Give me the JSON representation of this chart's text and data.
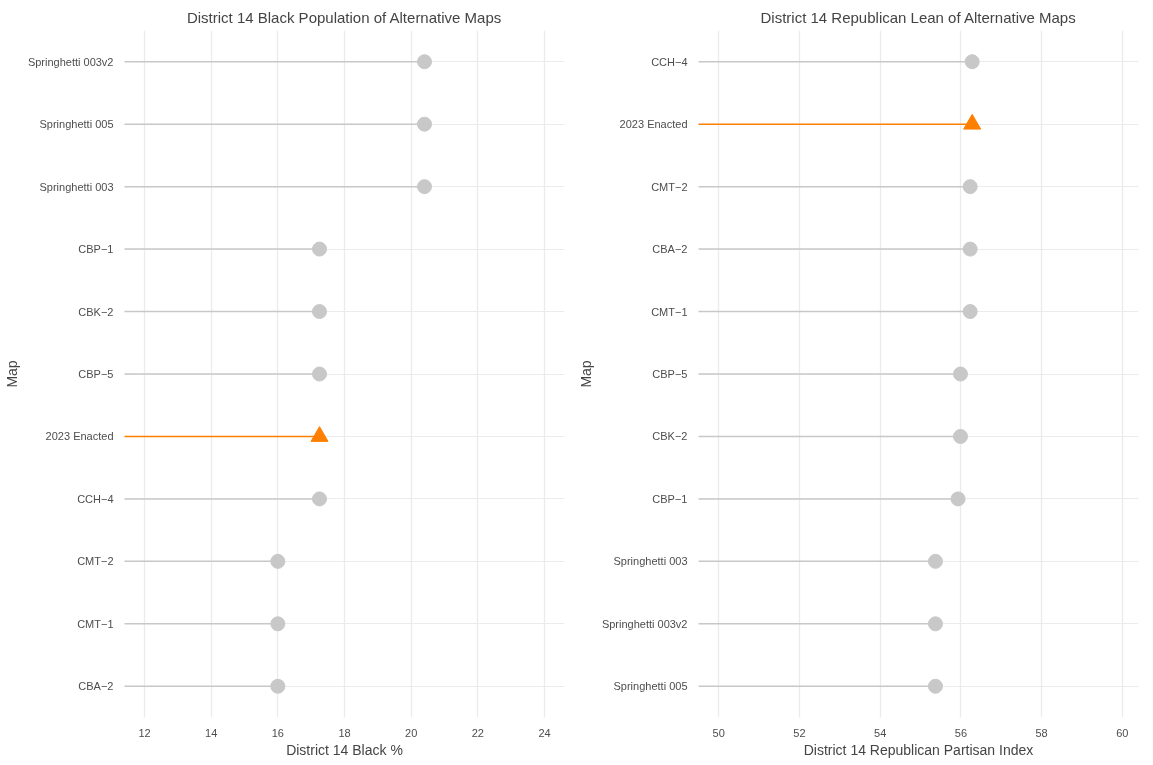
{
  "chart_data": [
    {
      "type": "lollipop",
      "title": "District 14 Black Population of Alternative Maps",
      "xlabel": "District 14 Black %",
      "ylabel": "Map",
      "orientation": "horizontal",
      "categories": [
        "Springhetti 003v2",
        "Springhetti 005",
        "Springhetti 003",
        "CBP−1",
        "CBK−2",
        "CBP−5",
        "2023 Enacted",
        "CCH−4",
        "CMT−2",
        "CMT−1",
        "CBA−2"
      ],
      "series": [
        {
          "color": "#c8c8c8",
          "marker": "circle",
          "values": [
            20.4,
            20.4,
            20.4,
            17.25,
            17.25,
            17.25,
            null,
            17.25,
            16.0,
            16.0,
            16.0
          ]
        },
        {
          "color": "#ff7f00",
          "marker": "triangle",
          "values": [
            null,
            null,
            null,
            null,
            null,
            null,
            17.25,
            null,
            null,
            null,
            null
          ]
        }
      ],
      "xlim": [
        11.4,
        24.6
      ],
      "xticks": [
        12,
        14,
        16,
        18,
        20,
        22,
        24
      ],
      "grid": true
    },
    {
      "type": "lollipop",
      "title": "District 14 Republican Lean of Alternative Maps",
      "xlabel": "District 14 Republican Partisan Index",
      "ylabel": "Map",
      "orientation": "horizontal",
      "categories": [
        "CCH−4",
        "2023 Enacted",
        "CMT−2",
        "CBA−2",
        "CMT−1",
        "CBP−5",
        "CBK−2",
        "CBP−1",
        "Springhetti 003",
        "Springhetti 003v2",
        "Springhetti 005"
      ],
      "series": [
        {
          "color": "#c8c8c8",
          "marker": "circle",
          "values": [
            56.28,
            null,
            56.23,
            56.23,
            56.23,
            55.99,
            55.99,
            55.93,
            55.37,
            55.37,
            55.37
          ]
        },
        {
          "color": "#ff7f00",
          "marker": "triangle",
          "values": [
            null,
            56.28,
            null,
            null,
            null,
            null,
            null,
            null,
            null,
            null,
            null
          ]
        }
      ],
      "xlim": [
        49.5,
        60.4
      ],
      "xticks": [
        50,
        52,
        54,
        56,
        58,
        60
      ],
      "grid": true
    }
  ]
}
